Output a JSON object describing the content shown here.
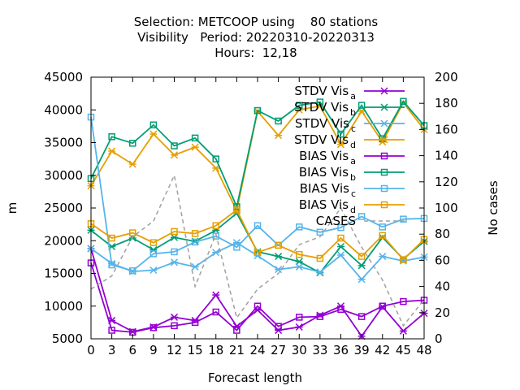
{
  "chart_data": {
    "type": "line",
    "title_lines": [
      "Selection: METCOOP using    80 stations",
      "Visibility   Period: 20220310-20220313",
      "Hours:  12,18"
    ],
    "xlabel": "Forecast length",
    "ylabel": "m",
    "y2label": "No cases",
    "x": [
      0,
      3,
      6,
      9,
      12,
      15,
      18,
      21,
      24,
      27,
      30,
      33,
      36,
      39,
      42,
      45,
      48
    ],
    "xlim": [
      0,
      48
    ],
    "ylim": [
      5000,
      45000
    ],
    "y2lim": [
      0,
      200
    ],
    "yticks": [
      "5000",
      "10000",
      "15000",
      "20000",
      "25000",
      "30000",
      "35000",
      "40000",
      "45000"
    ],
    "y2ticks": [
      "0",
      "20",
      "40",
      "60",
      "80",
      "100",
      "120",
      "140",
      "160",
      "180",
      "200"
    ],
    "legend_position": "top-right",
    "series": [
      {
        "name": "STDV Vis",
        "sub": "a",
        "axis": "y",
        "color": "#9400D3",
        "marker": "star",
        "dash": "",
        "values": [
          18800,
          7800,
          6100,
          6800,
          8300,
          7800,
          11700,
          6900,
          9400,
          6300,
          6800,
          8600,
          10000,
          5400,
          9900,
          6200,
          8900
        ]
      },
      {
        "name": "STDV Vis",
        "sub": "b",
        "axis": "y",
        "color": "#009E73",
        "marker": "star",
        "dash": "",
        "values": [
          21600,
          19100,
          20400,
          18600,
          20500,
          19900,
          21600,
          24200,
          18300,
          17600,
          16800,
          15100,
          19100,
          16200,
          20500,
          17200,
          19900
        ]
      },
      {
        "name": "STDV Vis",
        "sub": "c",
        "axis": "y",
        "color": "#56B4E9",
        "marker": "star",
        "dash": "",
        "values": [
          18800,
          16500,
          15300,
          15500,
          16700,
          16000,
          18200,
          19700,
          17700,
          15600,
          16000,
          15200,
          17800,
          14100,
          17600,
          16900,
          17500
        ]
      },
      {
        "name": "STDV Vis",
        "sub": "d",
        "axis": "y",
        "color": "#E69F00",
        "marker": "star",
        "dash": "",
        "values": [
          28400,
          33700,
          31700,
          36300,
          33100,
          34300,
          31100,
          24600,
          39800,
          36100,
          40000,
          40600,
          34700,
          39800,
          35100,
          41100,
          37000
        ]
      },
      {
        "name": "BIAS Vis",
        "sub": "a",
        "axis": "y",
        "color": "#9400D3",
        "marker": "square",
        "dash": "",
        "values": [
          16600,
          6300,
          6000,
          6700,
          7000,
          7500,
          9100,
          6300,
          10000,
          6900,
          8300,
          8400,
          9500,
          8400,
          10000,
          10700,
          10900
        ]
      },
      {
        "name": "BIAS Vis",
        "sub": "b",
        "axis": "y",
        "color": "#009E73",
        "marker": "square",
        "dash": "",
        "values": [
          29500,
          35900,
          34900,
          37700,
          34500,
          35700,
          32500,
          25200,
          39900,
          38300,
          40700,
          41200,
          36300,
          40700,
          35600,
          41300,
          37600
        ]
      },
      {
        "name": "BIAS Vis",
        "sub": "c",
        "axis": "y",
        "color": "#56B4E9",
        "marker": "square",
        "dash": "",
        "values": [
          38900,
          16300,
          15400,
          18000,
          18300,
          19800,
          20700,
          19000,
          22300,
          19300,
          22100,
          21300,
          22000,
          23700,
          22100,
          23300,
          23400
        ]
      },
      {
        "name": "BIAS Vis",
        "sub": "d",
        "axis": "y",
        "color": "#E69F00",
        "marker": "square",
        "dash": "",
        "values": [
          22600,
          20400,
          21200,
          19700,
          21400,
          21100,
          22300,
          24700,
          18200,
          19300,
          17900,
          17300,
          20400,
          17600,
          20800,
          17100,
          20200
        ]
      },
      {
        "name": "CASES",
        "sub": "",
        "axis": "y2",
        "color": "#a0a0a0",
        "marker": "none",
        "dash": "5,4",
        "values": [
          38,
          48,
          78,
          90,
          125,
          40,
          80,
          16,
          38,
          50,
          72,
          78,
          100,
          70,
          45,
          10,
          30
        ]
      }
    ]
  }
}
